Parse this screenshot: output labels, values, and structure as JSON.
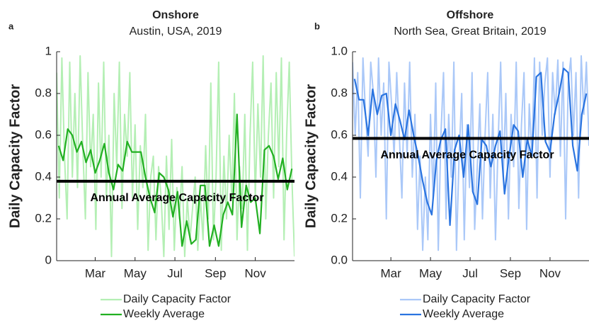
{
  "chart_data": [
    {
      "type": "line",
      "panel": "a",
      "title": "Onshore",
      "subtitle": "Austin, USA, 2019",
      "y_label": "Daily Capacity Factor",
      "xlim": [
        1,
        365
      ],
      "xticks": [
        {
          "value": 60,
          "label": "Mar"
        },
        {
          "value": 121,
          "label": "May"
        },
        {
          "value": 182,
          "label": "Jul"
        },
        {
          "value": 244,
          "label": "Sep"
        },
        {
          "value": 305,
          "label": "Nov"
        }
      ],
      "ylim": [
        0,
        1
      ],
      "yticks": [
        0,
        0.2,
        0.4,
        0.6,
        0.8,
        1
      ],
      "reference": {
        "value": 0.38,
        "label": "Annual Average Capacity Factor"
      },
      "series": [
        {
          "name": "Daily Capacity Factor",
          "color": "#b4efb4",
          "x": [
            1,
            5,
            9,
            13,
            17,
            21,
            25,
            29,
            33,
            37,
            41,
            45,
            49,
            53,
            57,
            61,
            65,
            69,
            73,
            77,
            81,
            85,
            89,
            93,
            97,
            101,
            105,
            109,
            113,
            117,
            121,
            125,
            129,
            133,
            137,
            141,
            145,
            149,
            153,
            157,
            161,
            165,
            169,
            173,
            177,
            181,
            185,
            189,
            193,
            197,
            201,
            205,
            209,
            213,
            217,
            221,
            225,
            229,
            233,
            237,
            241,
            245,
            249,
            253,
            257,
            261,
            265,
            269,
            273,
            277,
            281,
            285,
            289,
            293,
            297,
            301,
            305,
            309,
            313,
            317,
            321,
            325,
            329,
            333,
            337,
            341,
            345,
            349,
            353,
            357,
            361,
            365
          ],
          "values": [
            0.9,
            0.3,
            0.97,
            0.5,
            0.2,
            0.95,
            0.4,
            0.8,
            0.35,
            0.98,
            0.55,
            0.2,
            0.9,
            0.45,
            0.7,
            0.15,
            0.85,
            0.4,
            0.95,
            0.3,
            0.6,
            0.02,
            0.8,
            0.45,
            0.95,
            0.25,
            0.7,
            0.5,
            0.9,
            0.3,
            0.65,
            0.15,
            0.55,
            0.35,
            0.7,
            0.05,
            0.4,
            0.5,
            0.1,
            0.45,
            0.3,
            0.02,
            0.5,
            0.15,
            0.58,
            0.05,
            0.35,
            0.2,
            0.45,
            0.02,
            0.3,
            0.1,
            0.25,
            0.4,
            0.05,
            0.3,
            0.1,
            0.55,
            0.2,
            0.85,
            0.1,
            0.4,
            0.95,
            0.05,
            0.5,
            0.2,
            0.6,
            0.3,
            0.8,
            0.1,
            0.45,
            0.25,
            0.7,
            0.05,
            0.6,
            0.95,
            0.3,
            0.75,
            0.4,
            0.98,
            0.2,
            0.6,
            0.85,
            0.3,
            0.9,
            0.45,
            0.97,
            0.1,
            0.6,
            0.95,
            0.4,
            0.02
          ]
        },
        {
          "name": "Weekly Average",
          "color": "#22b022",
          "x": [
            4,
            11,
            18,
            25,
            32,
            39,
            46,
            53,
            60,
            67,
            74,
            81,
            88,
            95,
            102,
            109,
            116,
            123,
            130,
            137,
            144,
            151,
            158,
            165,
            172,
            179,
            186,
            193,
            200,
            207,
            214,
            221,
            228,
            235,
            242,
            249,
            256,
            263,
            270,
            277,
            284,
            291,
            298,
            305,
            312,
            319,
            326,
            333,
            340,
            347,
            354,
            361
          ],
          "values": [
            0.55,
            0.48,
            0.63,
            0.6,
            0.52,
            0.57,
            0.47,
            0.53,
            0.42,
            0.48,
            0.56,
            0.42,
            0.34,
            0.46,
            0.43,
            0.57,
            0.52,
            0.52,
            0.52,
            0.4,
            0.3,
            0.23,
            0.42,
            0.4,
            0.34,
            0.21,
            0.33,
            0.07,
            0.19,
            0.08,
            0.1,
            0.36,
            0.36,
            0.07,
            0.17,
            0.07,
            0.22,
            0.28,
            0.22,
            0.7,
            0.16,
            0.36,
            0.28,
            0.3,
            0.13,
            0.53,
            0.55,
            0.5,
            0.39,
            0.49,
            0.34,
            0.44
          ]
        }
      ]
    },
    {
      "type": "line",
      "panel": "b",
      "title": "Offshore",
      "subtitle": "North Sea, Great Britain, 2019",
      "y_label": "Daily Capacity Factor",
      "xlim": [
        1,
        365
      ],
      "xticks": [
        {
          "value": 60,
          "label": "Mar"
        },
        {
          "value": 121,
          "label": "May"
        },
        {
          "value": 182,
          "label": "Jul"
        },
        {
          "value": 244,
          "label": "Sep"
        },
        {
          "value": 305,
          "label": "Nov"
        }
      ],
      "ylim": [
        0,
        1
      ],
      "yticks": [
        {
          "value": 0,
          "label": "0.0"
        },
        0.2,
        0.4,
        0.6,
        0.8,
        {
          "value": 1,
          "label": "1.0"
        }
      ],
      "reference": {
        "value": 0.585,
        "label": "Annual Average Capacity Factor"
      },
      "series": [
        {
          "name": "Daily Capacity Factor",
          "color": "#aac8f8",
          "x": [
            1,
            5,
            9,
            13,
            17,
            21,
            25,
            29,
            33,
            37,
            41,
            45,
            49,
            53,
            57,
            61,
            65,
            69,
            73,
            77,
            81,
            85,
            89,
            93,
            97,
            101,
            105,
            109,
            113,
            117,
            121,
            125,
            129,
            133,
            137,
            141,
            145,
            149,
            153,
            157,
            161,
            165,
            169,
            173,
            177,
            181,
            185,
            189,
            193,
            197,
            201,
            205,
            209,
            213,
            217,
            221,
            225,
            229,
            233,
            237,
            241,
            245,
            249,
            253,
            257,
            261,
            265,
            269,
            273,
            277,
            281,
            285,
            289,
            293,
            297,
            301,
            305,
            309,
            313,
            317,
            321,
            325,
            329,
            333,
            337,
            341,
            345,
            349,
            353,
            357,
            361,
            365
          ],
          "values": [
            0.95,
            0.6,
            0.9,
            0.3,
            0.97,
            0.7,
            0.5,
            0.95,
            0.8,
            0.4,
            0.97,
            0.6,
            0.85,
            0.2,
            0.95,
            0.75,
            0.5,
            0.9,
            0.6,
            0.3,
            0.85,
            0.5,
            0.95,
            0.4,
            0.7,
            0.15,
            0.5,
            0.05,
            0.4,
            0.1,
            0.7,
            0.3,
            0.85,
            0.05,
            0.6,
            0.9,
            0.2,
            0.7,
            0.4,
            0.95,
            0.05,
            0.5,
            0.8,
            0.1,
            0.65,
            0.35,
            0.9,
            0.15,
            0.45,
            0.75,
            0.2,
            0.6,
            0.9,
            0.3,
            0.7,
            0.1,
            0.55,
            0.95,
            0.4,
            0.8,
            0.2,
            0.7,
            0.45,
            0.95,
            0.25,
            0.65,
            0.9,
            0.15,
            0.75,
            0.5,
            0.97,
            0.3,
            0.95,
            0.6,
            0.85,
            0.97,
            0.4,
            0.9,
            0.7,
            0.96,
            0.5,
            0.95,
            0.2,
            0.85,
            0.97,
            0.6,
            0.9,
            0.3,
            0.98,
            0.7,
            0.95,
            0.55
          ]
        },
        {
          "name": "Weekly Average",
          "color": "#2a74e0",
          "x": [
            4,
            11,
            18,
            25,
            32,
            39,
            46,
            53,
            60,
            67,
            74,
            81,
            88,
            95,
            102,
            109,
            116,
            123,
            130,
            137,
            144,
            151,
            158,
            165,
            172,
            179,
            186,
            193,
            200,
            207,
            214,
            221,
            228,
            235,
            242,
            249,
            256,
            263,
            270,
            277,
            284,
            291,
            298,
            305,
            312,
            319,
            326,
            333,
            340,
            347,
            354,
            361
          ],
          "values": [
            0.87,
            0.77,
            0.77,
            0.6,
            0.82,
            0.7,
            0.79,
            0.8,
            0.6,
            0.75,
            0.67,
            0.58,
            0.72,
            0.6,
            0.5,
            0.38,
            0.28,
            0.22,
            0.48,
            0.58,
            0.63,
            0.17,
            0.53,
            0.6,
            0.4,
            0.65,
            0.33,
            0.27,
            0.58,
            0.55,
            0.45,
            0.55,
            0.62,
            0.32,
            0.5,
            0.65,
            0.62,
            0.4,
            0.58,
            0.5,
            0.88,
            0.9,
            0.57,
            0.52,
            0.7,
            0.8,
            0.92,
            0.9,
            0.55,
            0.43,
            0.7,
            0.8
          ]
        }
      ]
    }
  ]
}
